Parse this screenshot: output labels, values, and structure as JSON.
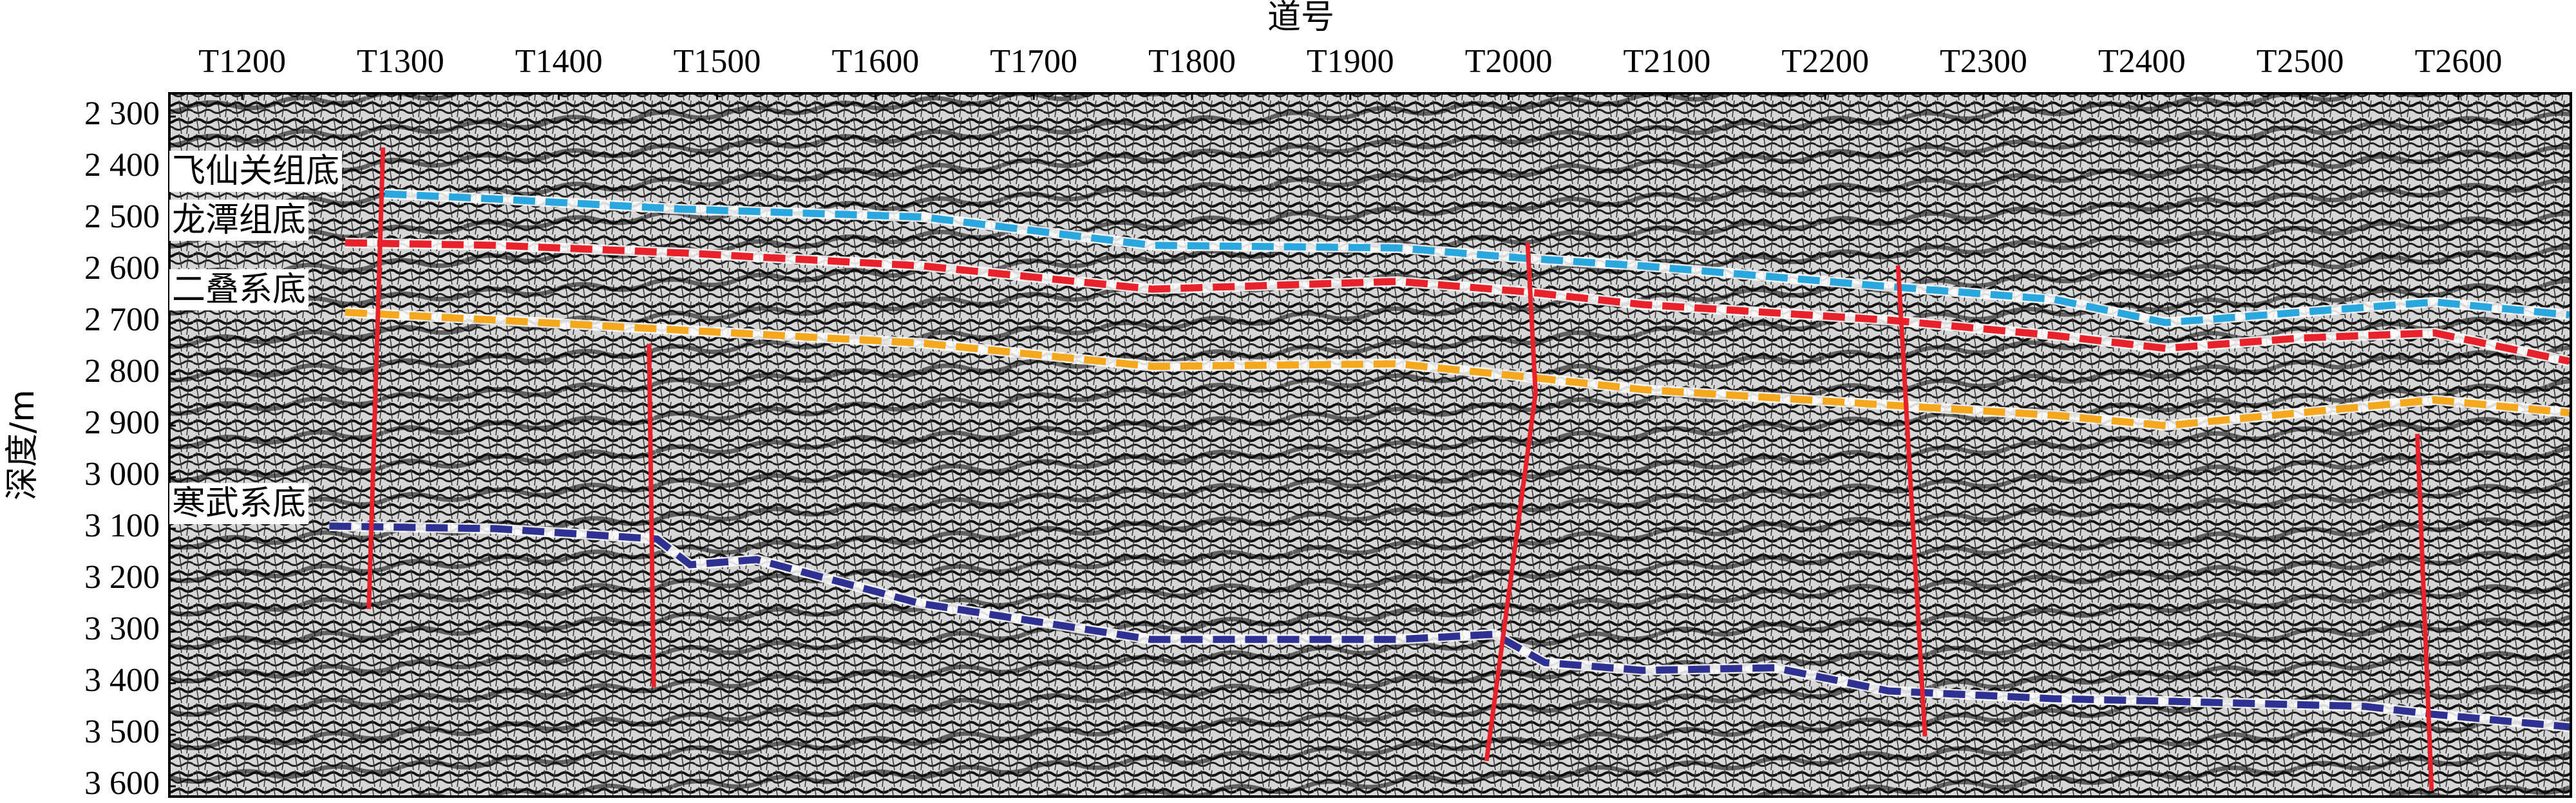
{
  "chart_data": {
    "type": "seismic",
    "x_label": "道号",
    "y_label": "深度/m",
    "xlim": [
      1154,
      2671
    ],
    "ylim": [
      2255,
      3620
    ],
    "y_inverted": true,
    "grid": false,
    "xticks": [
      {
        "value": 1200,
        "label": "T1200"
      },
      {
        "value": 1300,
        "label": "T1300"
      },
      {
        "value": 1400,
        "label": "T1400"
      },
      {
        "value": 1500,
        "label": "T1500"
      },
      {
        "value": 1600,
        "label": "T1600"
      },
      {
        "value": 1700,
        "label": "T1700"
      },
      {
        "value": 1800,
        "label": "T1800"
      },
      {
        "value": 1900,
        "label": "T1900"
      },
      {
        "value": 2000,
        "label": "T2000"
      },
      {
        "value": 2100,
        "label": "T2100"
      },
      {
        "value": 2200,
        "label": "T2200"
      },
      {
        "value": 2300,
        "label": "T2300"
      },
      {
        "value": 2400,
        "label": "T2400"
      },
      {
        "value": 2500,
        "label": "T2500"
      },
      {
        "value": 2600,
        "label": "T2600"
      }
    ],
    "yticks": [
      {
        "value": 2300,
        "label": "2 300"
      },
      {
        "value": 2400,
        "label": "2 400"
      },
      {
        "value": 2500,
        "label": "2 500"
      },
      {
        "value": 2600,
        "label": "2 600"
      },
      {
        "value": 2700,
        "label": "2 700"
      },
      {
        "value": 2800,
        "label": "2 800"
      },
      {
        "value": 2900,
        "label": "2 900"
      },
      {
        "value": 3000,
        "label": "3 000"
      },
      {
        "value": 3100,
        "label": "3 100"
      },
      {
        "value": 3200,
        "label": "3 200"
      },
      {
        "value": 3300,
        "label": "3 300"
      },
      {
        "value": 3400,
        "label": "3 400"
      },
      {
        "value": 3500,
        "label": "3 500"
      },
      {
        "value": 3600,
        "label": "3 600"
      }
    ],
    "series": [
      {
        "name": "飞仙关组底",
        "color": "#29a8e0",
        "x": [
          1290,
          1360,
          1480,
          1630,
          1775,
          1930,
          2010,
          2085,
          2240,
          2345,
          2415,
          2500,
          2585,
          2670
        ],
        "values": [
          2450,
          2460,
          2480,
          2495,
          2550,
          2555,
          2575,
          2590,
          2630,
          2655,
          2700,
          2680,
          2660,
          2685
        ]
      },
      {
        "name": "龙潭组底",
        "color": "#e8212a",
        "x": [
          1265,
          1360,
          1480,
          1630,
          1775,
          1930,
          2010,
          2085,
          2240,
          2345,
          2415,
          2500,
          2585,
          2670
        ],
        "values": [
          2545,
          2550,
          2565,
          2590,
          2635,
          2620,
          2640,
          2665,
          2695,
          2725,
          2750,
          2730,
          2720,
          2775
        ]
      },
      {
        "name": "二叠系底",
        "color": "#f6a81c",
        "x": [
          1265,
          1360,
          1480,
          1630,
          1775,
          1930,
          2010,
          2085,
          2240,
          2345,
          2415,
          2500,
          2585,
          2670
        ],
        "values": [
          2680,
          2695,
          2715,
          2740,
          2785,
          2780,
          2805,
          2830,
          2860,
          2880,
          2900,
          2875,
          2850,
          2875
        ]
      },
      {
        "name": "寒武系底",
        "color": "#2e3192",
        "x": [
          1255,
          1360,
          1462,
          1483,
          1525,
          1628,
          1774,
          1929,
          1991,
          2023,
          2085,
          2168,
          2240,
          2344,
          2417,
          2541,
          2583,
          2671
        ],
        "values": [
          3095,
          3100,
          3120,
          3170,
          3160,
          3245,
          3315,
          3315,
          3305,
          3360,
          3375,
          3370,
          3415,
          3430,
          3435,
          3445,
          3460,
          3485
        ]
      }
    ],
    "fault_color": "#e8212a",
    "faults": [
      {
        "x": [
          1289,
          1280
        ],
        "y": [
          2360,
          3256
        ]
      },
      {
        "x": [
          1457,
          1460
        ],
        "y": [
          2741,
          3408
        ]
      },
      {
        "x": [
          2012,
          2017,
          1986
        ],
        "y": [
          2545,
          2837,
          3551
        ]
      },
      {
        "x": [
          2246,
          2263
        ],
        "y": [
          2589,
          3503
        ]
      },
      {
        "x": [
          2574,
          2583
        ],
        "y": [
          2916,
          3608
        ]
      }
    ]
  }
}
